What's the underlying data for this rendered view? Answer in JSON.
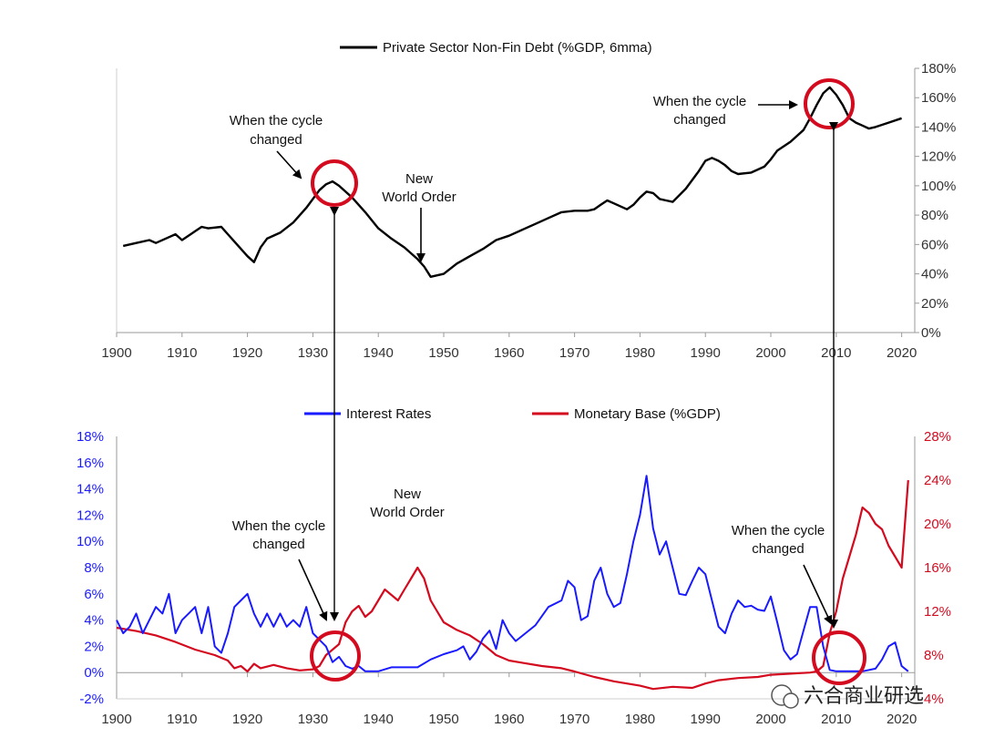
{
  "chart_data": [
    {
      "type": "line",
      "id": "top",
      "series": [
        {
          "name": "Private Sector Non-Fin Debt (%GDP, 6mma)",
          "color": "#000000",
          "x": [
            1901,
            1903,
            1905,
            1906,
            1908,
            1909,
            1910,
            1912,
            1913,
            1914,
            1916,
            1918,
            1920,
            1921,
            1922,
            1923,
            1925,
            1927,
            1929,
            1931,
            1932,
            1933,
            1934,
            1936,
            1938,
            1940,
            1942,
            1944,
            1946,
            1947,
            1948,
            1950,
            1952,
            1954,
            1956,
            1958,
            1960,
            1962,
            1964,
            1966,
            1968,
            1970,
            1972,
            1973,
            1974,
            1975,
            1976,
            1978,
            1979,
            1980,
            1981,
            1982,
            1983,
            1984,
            1985,
            1987,
            1989,
            1990,
            1991,
            1992,
            1993,
            1994,
            1995,
            1997,
            1999,
            2000,
            2001,
            2003,
            2005,
            2006,
            2007,
            2008,
            2009,
            2010,
            2011,
            2012,
            2013,
            2014,
            2015,
            2016,
            2018,
            2020
          ],
          "values": [
            59,
            61,
            63,
            61,
            65,
            67,
            63,
            69,
            72,
            71,
            72,
            62,
            52,
            48,
            58,
            64,
            68,
            75,
            85,
            97,
            101,
            103,
            100,
            92,
            82,
            71,
            64,
            58,
            50,
            45,
            38,
            40,
            47,
            52,
            57,
            63,
            66,
            70,
            74,
            78,
            82,
            83,
            83,
            84,
            87,
            90,
            88,
            84,
            87,
            92,
            96,
            95,
            91,
            90,
            89,
            98,
            110,
            117,
            119,
            117,
            114,
            110,
            108,
            109,
            113,
            118,
            124,
            130,
            138,
            146,
            155,
            163,
            167,
            162,
            155,
            146,
            143,
            141,
            139,
            140,
            143,
            146
          ]
        }
      ],
      "y_axis": {
        "side": "right",
        "min": 0,
        "max": 180,
        "tick_labels": [
          "0%",
          "20%",
          "40%",
          "60%",
          "80%",
          "100%",
          "120%",
          "140%",
          "160%",
          "180%"
        ]
      },
      "x_axis": {
        "min": 1900,
        "max": 2022,
        "tick_labels": [
          "1900",
          "1910",
          "1920",
          "1930",
          "1940",
          "1950",
          "1960",
          "1970",
          "1980",
          "1990",
          "2000",
          "2010",
          "2020"
        ]
      },
      "legend": "top-center",
      "annotations": [
        {
          "id": "cycle-1930",
          "lines": [
            "When the cycle",
            "changed"
          ],
          "target_year": 1933
        },
        {
          "id": "new-world-order",
          "lines": [
            "New",
            "World Order"
          ],
          "target_year": 1946
        },
        {
          "id": "cycle-2008",
          "lines": [
            "When the cycle",
            "changed"
          ],
          "target_year": 2008
        }
      ]
    },
    {
      "type": "line",
      "id": "bottom",
      "series": [
        {
          "name": "Interest Rates",
          "color": "#1a1aff",
          "axis": "left",
          "x": [
            1900,
            1901,
            1902,
            1903,
            1904,
            1905,
            1906,
            1907,
            1908,
            1909,
            1910,
            1911,
            1912,
            1913,
            1914,
            1915,
            1916,
            1917,
            1918,
            1919,
            1920,
            1921,
            1922,
            1923,
            1924,
            1925,
            1926,
            1927,
            1928,
            1929,
            1930,
            1931,
            1932,
            1933,
            1934,
            1935,
            1936,
            1937,
            1938,
            1940,
            1942,
            1944,
            1946,
            1948,
            1950,
            1952,
            1953,
            1954,
            1955,
            1956,
            1957,
            1958,
            1959,
            1960,
            1961,
            1962,
            1964,
            1966,
            1968,
            1969,
            1970,
            1971,
            1972,
            1973,
            1974,
            1975,
            1976,
            1977,
            1978,
            1979,
            1980,
            1981,
            1982,
            1983,
            1984,
            1985,
            1986,
            1987,
            1988,
            1989,
            1990,
            1991,
            1992,
            1993,
            1994,
            1995,
            1996,
            1997,
            1998,
            1999,
            2000,
            2001,
            2002,
            2003,
            2004,
            2005,
            2006,
            2007,
            2008,
            2009,
            2010,
            2012,
            2014,
            2016,
            2017,
            2018,
            2019,
            2020,
            2021
          ],
          "values": [
            4,
            3,
            3.5,
            4.5,
            3,
            4,
            5,
            4.5,
            6,
            3,
            4,
            4.5,
            5,
            3,
            5,
            2,
            1.5,
            3,
            5,
            5.5,
            6,
            4.5,
            3.5,
            4.5,
            3.5,
            4.5,
            3.5,
            4,
            3.5,
            5,
            3,
            2.5,
            2,
            0.8,
            1.2,
            0.5,
            0.3,
            0.5,
            0.1,
            0.1,
            0.4,
            0.4,
            0.4,
            1,
            1.4,
            1.7,
            2,
            1,
            1.6,
            2.6,
            3.2,
            1.8,
            4,
            3,
            2.4,
            2.8,
            3.6,
            5,
            5.5,
            7,
            6.5,
            4,
            4.3,
            7,
            8,
            6,
            5,
            5.3,
            7.5,
            10,
            12,
            15,
            11,
            9,
            10,
            8,
            6,
            5.9,
            7,
            8,
            7.5,
            5.5,
            3.5,
            3,
            4.5,
            5.5,
            5,
            5.1,
            4.8,
            4.7,
            5.8,
            3.8,
            1.7,
            1,
            1.4,
            3.2,
            5,
            5,
            2,
            0.2,
            0.1,
            0.1,
            0.1,
            0.3,
            1,
            2,
            2.3,
            0.5,
            0.1
          ]
        },
        {
          "name": "Monetary Base (%GDP)",
          "color": "#d40a1f",
          "axis": "right",
          "x": [
            1900,
            1903,
            1906,
            1909,
            1912,
            1915,
            1917,
            1918,
            1919,
            1920,
            1921,
            1922,
            1924,
            1926,
            1928,
            1930,
            1931,
            1932,
            1933,
            1934,
            1935,
            1936,
            1937,
            1938,
            1939,
            1940,
            1941,
            1942,
            1943,
            1944,
            1945,
            1946,
            1947,
            1948,
            1949,
            1950,
            1952,
            1954,
            1956,
            1958,
            1960,
            1962,
            1965,
            1968,
            1970,
            1973,
            1976,
            1980,
            1982,
            1985,
            1988,
            1990,
            1992,
            1995,
            1998,
            2000,
            2003,
            2006,
            2007,
            2008,
            2009,
            2010,
            2011,
            2012,
            2013,
            2014,
            2015,
            2016,
            2017,
            2018,
            2019,
            2020,
            2021
          ],
          "values": [
            10.5,
            10.2,
            9.8,
            9.2,
            8.5,
            8,
            7.5,
            6.8,
            7,
            6.5,
            7.2,
            6.8,
            7.1,
            6.8,
            6.6,
            6.7,
            7,
            8,
            8.5,
            9,
            11,
            12,
            12.5,
            11.5,
            12,
            13,
            14,
            13.5,
            13,
            14,
            15,
            16,
            15,
            13,
            12,
            11,
            10.3,
            9.8,
            9,
            8,
            7.5,
            7.3,
            7,
            6.8,
            6.5,
            6,
            5.6,
            5.2,
            4.9,
            5.1,
            5,
            5.4,
            5.7,
            5.9,
            6,
            6.2,
            6.3,
            6.4,
            6.5,
            7,
            10,
            12,
            15,
            17,
            19,
            21.5,
            21,
            20,
            19.5,
            18,
            17,
            16,
            24
          ]
        }
      ],
      "left_axis": {
        "min": -2,
        "max": 18,
        "tick_labels": [
          "-2%",
          "0%",
          "2%",
          "4%",
          "6%",
          "8%",
          "10%",
          "12%",
          "14%",
          "16%",
          "18%"
        ]
      },
      "right_axis": {
        "min": 4,
        "max": 28,
        "tick_labels": [
          "4%",
          "8%",
          "12%",
          "16%",
          "20%",
          "24%",
          "28%"
        ]
      },
      "x_axis": {
        "min": 1900,
        "max": 2022,
        "tick_labels": [
          "1900",
          "1910",
          "1920",
          "1930",
          "1940",
          "1950",
          "1960",
          "1970",
          "1980",
          "1990",
          "2000",
          "2010",
          "2020"
        ]
      },
      "legend": "top-center",
      "annotations": [
        {
          "id": "cycle-1930",
          "lines": [
            "When the cycle",
            "changed"
          ],
          "target_year": 1933
        },
        {
          "id": "new-world-order",
          "lines": [
            "New",
            "World Order"
          ]
        },
        {
          "id": "cycle-2008",
          "lines": [
            "When the cycle",
            "changed"
          ],
          "target_year": 2008
        }
      ]
    }
  ],
  "watermark": {
    "text": "六合商业研选",
    "icon": "wechat-icon"
  }
}
